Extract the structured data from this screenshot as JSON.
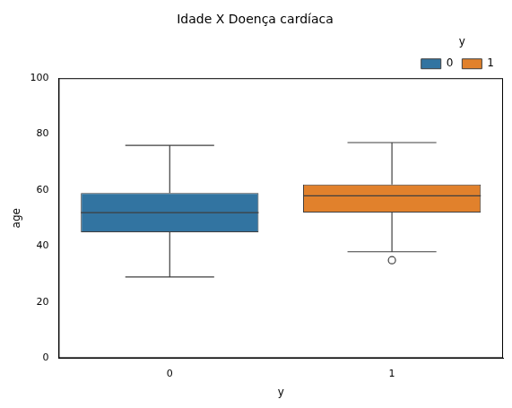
{
  "chart_data": {
    "type": "box",
    "title": "Idade X Doença cardíaca",
    "x_label": "y",
    "y_label": "age",
    "categories": [
      "0",
      "1"
    ],
    "legend": "upper right",
    "legend_title": "y",
    "grid": false,
    "ylim": [
      0,
      100
    ],
    "yticks": [
      0,
      20,
      40,
      60,
      80,
      100
    ],
    "series": [
      {
        "name": "0",
        "color": "#3274a1",
        "values": [
          {
            "min": 29,
            "q1": 45,
            "median": 52,
            "q3": 59,
            "max": 76,
            "outliers": []
          },
          null
        ]
      },
      {
        "name": "1",
        "color": "#e1812c",
        "values": [
          null,
          {
            "min": 38,
            "q1": 52,
            "median": 58,
            "q3": 62,
            "max": 77,
            "outliers": [
              35
            ]
          }
        ]
      }
    ]
  }
}
